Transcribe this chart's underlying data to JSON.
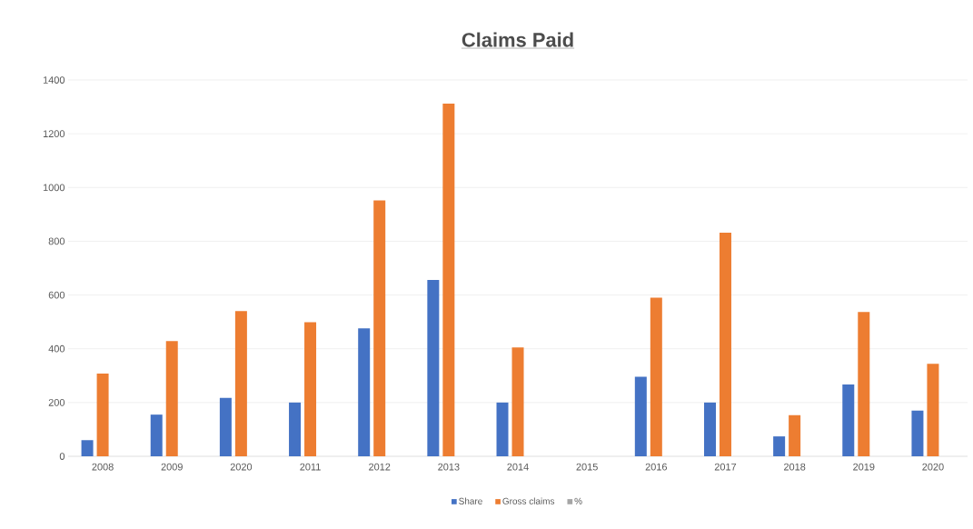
{
  "chart_data": {
    "type": "bar",
    "title": "Claims Paid",
    "categories": [
      "2008",
      "2009",
      "2020",
      "2011",
      "2012",
      "2013",
      "2014",
      "2015",
      "2016",
      "2017",
      "2018",
      "2019",
      "2020"
    ],
    "series": [
      {
        "name": "Share",
        "color": "#4472c4",
        "values": [
          60,
          155,
          217,
          200,
          476,
          656,
          200,
          null,
          296,
          200,
          74,
          267,
          170
        ]
      },
      {
        "name": "Gross claims",
        "color": "#ed7d31",
        "values": [
          308,
          429,
          540,
          499,
          952,
          1312,
          405,
          null,
          590,
          832,
          153,
          537,
          344
        ]
      },
      {
        "name": "%",
        "color": "#a5a5a5",
        "values": [
          null,
          null,
          null,
          null,
          null,
          null,
          null,
          null,
          null,
          null,
          null,
          null,
          null
        ]
      }
    ],
    "ylim": [
      0,
      1400
    ],
    "yticks": [
      0,
      200,
      400,
      600,
      800,
      1000,
      1200,
      1400
    ],
    "grid": "y",
    "legend": "bottom"
  }
}
